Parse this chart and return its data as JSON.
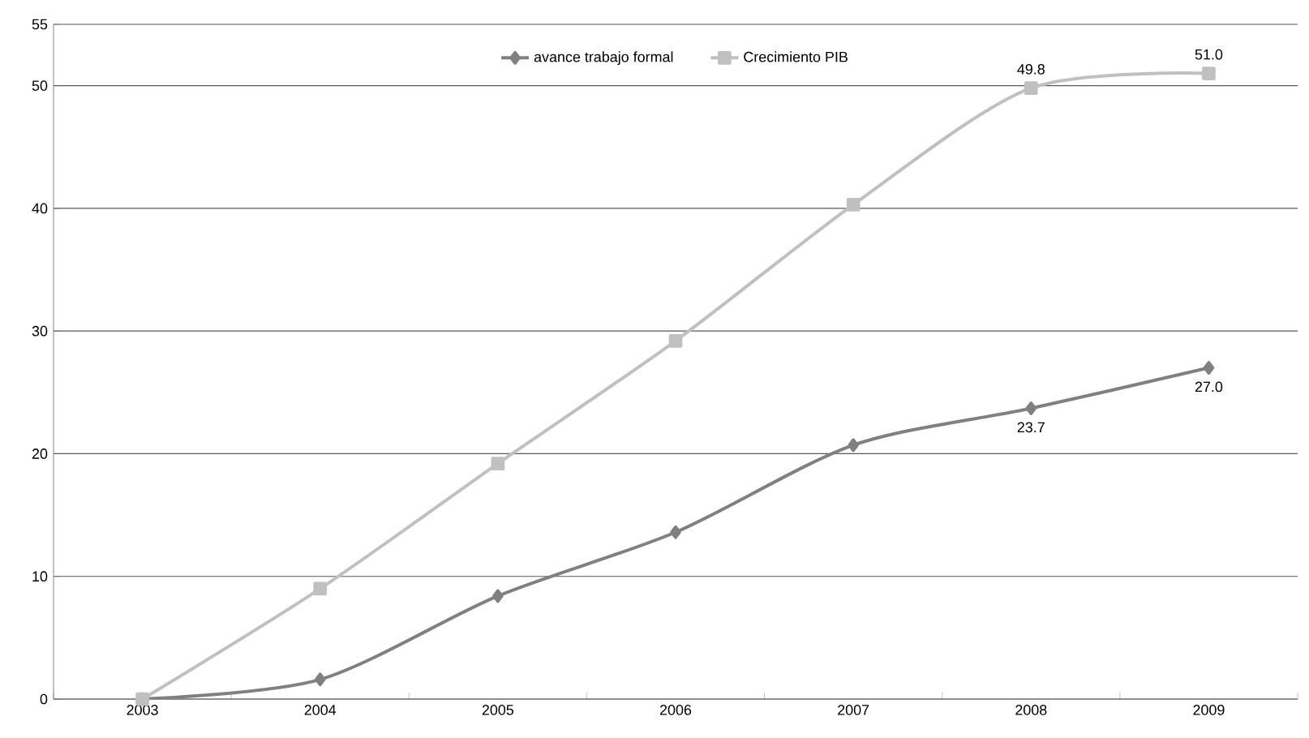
{
  "chart_data": {
    "type": "line",
    "categories": [
      "2003",
      "2004",
      "2005",
      "2006",
      "2007",
      "2008",
      "2009"
    ],
    "series": [
      {
        "name": "avance trabajo formal",
        "color": "#808080",
        "marker": "diamond",
        "values": [
          0,
          1.6,
          8.4,
          13.6,
          20.7,
          23.7,
          27.0
        ],
        "value_labels": [
          null,
          null,
          null,
          null,
          null,
          "23.7",
          "27.0"
        ]
      },
      {
        "name": "Crecimiento PIB",
        "color": "#c0c0c0",
        "marker": "square",
        "values": [
          0,
          9.0,
          19.2,
          29.2,
          40.3,
          49.8,
          51.0
        ],
        "value_labels": [
          null,
          null,
          null,
          null,
          null,
          "49.8",
          "51.0"
        ]
      }
    ],
    "ylim": [
      0,
      55
    ],
    "yticks": [
      0,
      10,
      20,
      30,
      40,
      50,
      55
    ],
    "grid": "y",
    "legend": "top",
    "line_style": "solid"
  }
}
